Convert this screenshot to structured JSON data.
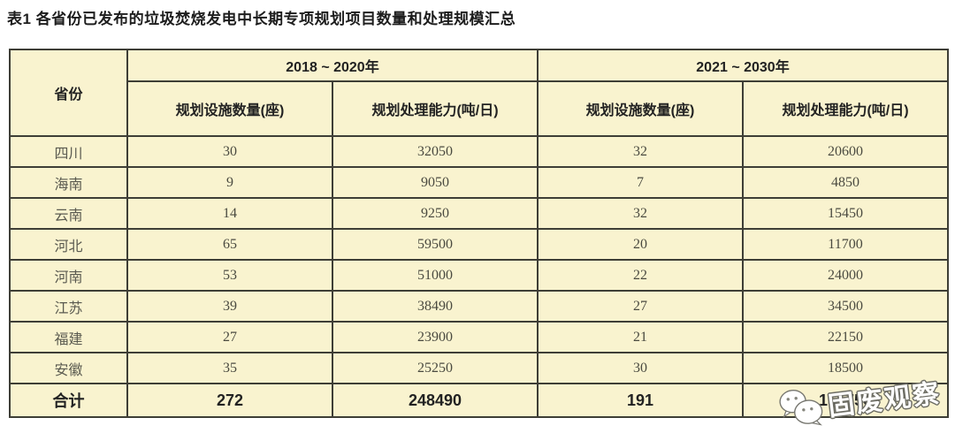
{
  "page_title": "表1 各省份已发布的垃圾焚烧发电中长期专项规划项目数量和处理规模汇总",
  "table": {
    "corner_header": "省份",
    "groups": [
      {
        "label": "2018 ~ 2020年",
        "sub": [
          "规划设施数量(座)",
          "规划处理能力(吨/日)"
        ]
      },
      {
        "label": "2021 ~ 2030年",
        "sub": [
          "规划设施数量(座)",
          "规划处理能力(吨/日)"
        ]
      }
    ],
    "rows": [
      {
        "province": "四川",
        "values": [
          "30",
          "32050",
          "32",
          "20600"
        ]
      },
      {
        "province": "海南",
        "values": [
          "9",
          "9050",
          "7",
          "4850"
        ]
      },
      {
        "province": "云南",
        "values": [
          "14",
          "9250",
          "32",
          "15450"
        ]
      },
      {
        "province": "河北",
        "values": [
          "65",
          "59500",
          "20",
          "11700"
        ]
      },
      {
        "province": "河南",
        "values": [
          "53",
          "51000",
          "22",
          "24000"
        ]
      },
      {
        "province": "江苏",
        "values": [
          "39",
          "38490",
          "27",
          "34500"
        ]
      },
      {
        "province": "福建",
        "values": [
          "27",
          "23900",
          "21",
          "22150"
        ]
      },
      {
        "province": "安徽",
        "values": [
          "35",
          "25250",
          "30",
          "18500"
        ]
      }
    ],
    "total": {
      "label": "合计",
      "values": [
        "272",
        "248490",
        "191",
        "151750"
      ]
    }
  },
  "watermark": {
    "text": "固废观察",
    "icon": "wechat-icon"
  },
  "colors": {
    "cell_background": "#f9f3cf",
    "border": "#3e3e36",
    "title_text": "#1d1d1d",
    "watermark_text": "#ffffff"
  }
}
